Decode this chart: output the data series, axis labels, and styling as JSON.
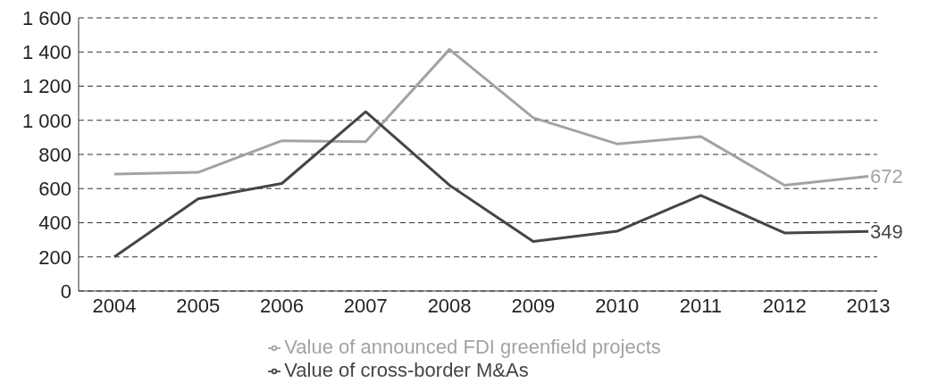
{
  "chart_data": {
    "type": "line",
    "categories": [
      "2004",
      "2005",
      "2006",
      "2007",
      "2008",
      "2009",
      "2010",
      "2011",
      "2012",
      "2013"
    ],
    "series": [
      {
        "name": "Value of announced FDI greenfield projects",
        "color": "#a3a3a3",
        "values": [
          685,
          695,
          880,
          875,
          1415,
          1015,
          862,
          905,
          620,
          672
        ]
      },
      {
        "name": "Value of cross-border M&As",
        "color": "#454545",
        "values": [
          200,
          540,
          630,
          1050,
          620,
          290,
          350,
          560,
          340,
          349
        ]
      }
    ],
    "ylim": [
      0,
      1600
    ],
    "yticks": [
      0,
      200,
      400,
      600,
      800,
      {
        "value": 1000,
        "label": "1 000"
      },
      {
        "value": 1200,
        "label": "1 200"
      },
      {
        "value": 1400,
        "label": "1 400"
      },
      {
        "value": 1600,
        "label": "1 600"
      }
    ],
    "grid": "y",
    "line_style": "solid",
    "marker": "none",
    "legend": "bottom",
    "annotations": [
      {
        "text": "672",
        "x": "2013",
        "y": 672
      },
      {
        "text": "349",
        "x": "2013",
        "y": 349
      }
    ]
  }
}
